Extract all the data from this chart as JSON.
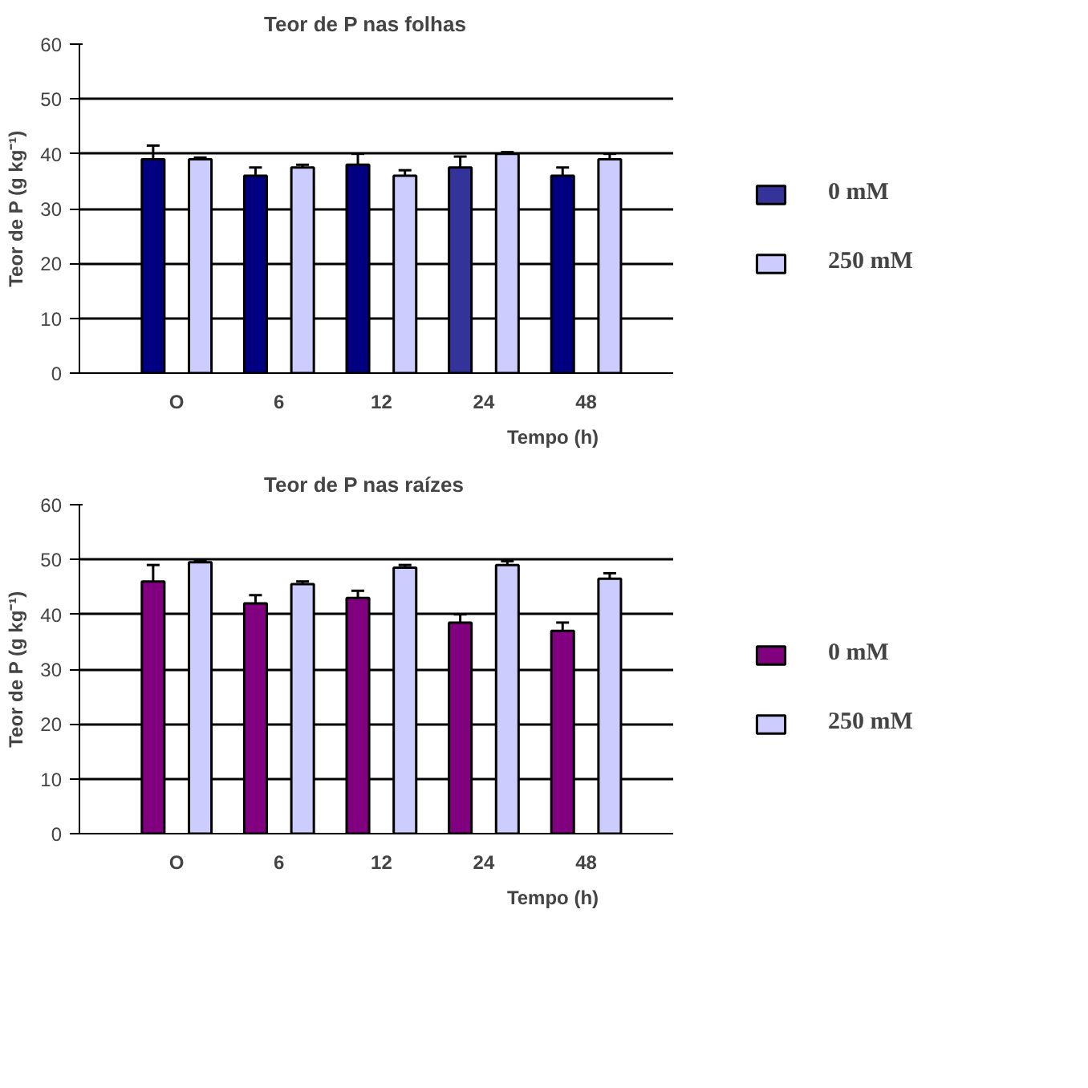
{
  "chart_data": [
    {
      "type": "bar",
      "title": "Teor de P nas folhas",
      "xlabel": "Tempo (h)",
      "ylabel": "Teor de P (g kg⁻¹)",
      "categories": [
        "O",
        "6",
        "12",
        "24",
        "48"
      ],
      "ylim": [
        0,
        60
      ],
      "yticks": [
        0,
        10,
        20,
        30,
        40,
        50,
        60
      ],
      "grid": "y",
      "legend": "right",
      "series": [
        {
          "name": "0 mM",
          "color": "#333399",
          "colors": [
            "#000080",
            "#000080",
            "#000080",
            "#333399",
            "#000080"
          ],
          "values": [
            39,
            36,
            38,
            37.5,
            36
          ],
          "errors": [
            2.5,
            1.5,
            2,
            2,
            1.5
          ]
        },
        {
          "name": "250 mM",
          "color": "#ccccff",
          "values": [
            39,
            37.5,
            36,
            40,
            39
          ],
          "errors": [
            0.3,
            0.5,
            1,
            0.3,
            1
          ]
        }
      ]
    },
    {
      "type": "bar",
      "title": "Teor de P nas raízes",
      "xlabel": "Tempo (h)",
      "ylabel": "Teor de P (g kg⁻¹)",
      "categories": [
        "O",
        "6",
        "12",
        "24",
        "48"
      ],
      "ylim": [
        0,
        60
      ],
      "yticks": [
        0,
        10,
        20,
        30,
        40,
        50,
        60
      ],
      "grid": "y",
      "legend": "right",
      "series": [
        {
          "name": "0 mM",
          "color": "#800080",
          "values": [
            46,
            42,
            43,
            38.5,
            37
          ],
          "errors": [
            3,
            1.5,
            1.3,
            1.5,
            1.5
          ]
        },
        {
          "name": "250 mM",
          "color": "#ccccff",
          "values": [
            49.5,
            45.5,
            48.5,
            49,
            46.5
          ],
          "errors": [
            0.3,
            0.5,
            0.5,
            0.7,
            1
          ]
        }
      ]
    }
  ]
}
